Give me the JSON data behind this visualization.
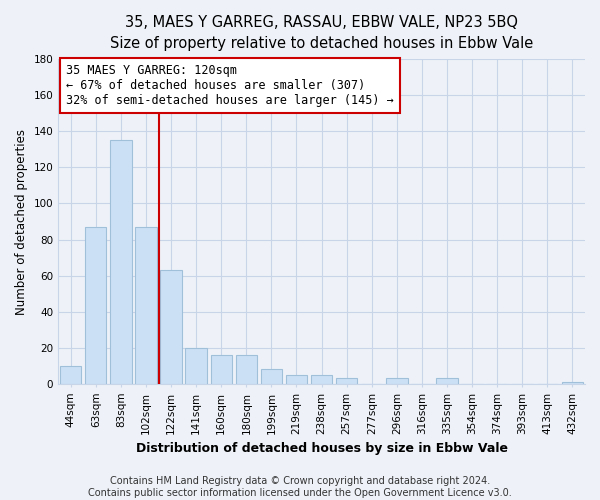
{
  "title": "35, MAES Y GARREG, RASSAU, EBBW VALE, NP23 5BQ",
  "subtitle": "Size of property relative to detached houses in Ebbw Vale",
  "xlabel": "Distribution of detached houses by size in Ebbw Vale",
  "ylabel": "Number of detached properties",
  "bar_labels": [
    "44sqm",
    "63sqm",
    "83sqm",
    "102sqm",
    "122sqm",
    "141sqm",
    "160sqm",
    "180sqm",
    "199sqm",
    "219sqm",
    "238sqm",
    "257sqm",
    "277sqm",
    "296sqm",
    "316sqm",
    "335sqm",
    "354sqm",
    "374sqm",
    "393sqm",
    "413sqm",
    "432sqm"
  ],
  "bar_values": [
    10,
    87,
    135,
    87,
    63,
    20,
    16,
    16,
    8,
    5,
    5,
    3,
    0,
    3,
    0,
    3,
    0,
    0,
    0,
    0,
    1
  ],
  "bar_color": "#cce0f5",
  "bar_edge_color": "#a0bfd8",
  "vline_x": 3.5,
  "vline_color": "#cc0000",
  "annotation_text": "35 MAES Y GARREG: 120sqm\n← 67% of detached houses are smaller (307)\n32% of semi-detached houses are larger (145) →",
  "annotation_box_color": "#ffffff",
  "annotation_box_edge": "#cc0000",
  "ylim": [
    0,
    180
  ],
  "yticks": [
    0,
    20,
    40,
    60,
    80,
    100,
    120,
    140,
    160,
    180
  ],
  "footer_line1": "Contains HM Land Registry data © Crown copyright and database right 2024.",
  "footer_line2": "Contains public sector information licensed under the Open Government Licence v3.0.",
  "background_color": "#eef2f8",
  "grid_color": "#c8d4e8",
  "title_fontsize": 10.5,
  "subtitle_fontsize": 9.5,
  "xlabel_fontsize": 9,
  "ylabel_fontsize": 8.5,
  "footer_fontsize": 7,
  "annotation_fontsize": 8.5,
  "tick_fontsize": 7.5
}
